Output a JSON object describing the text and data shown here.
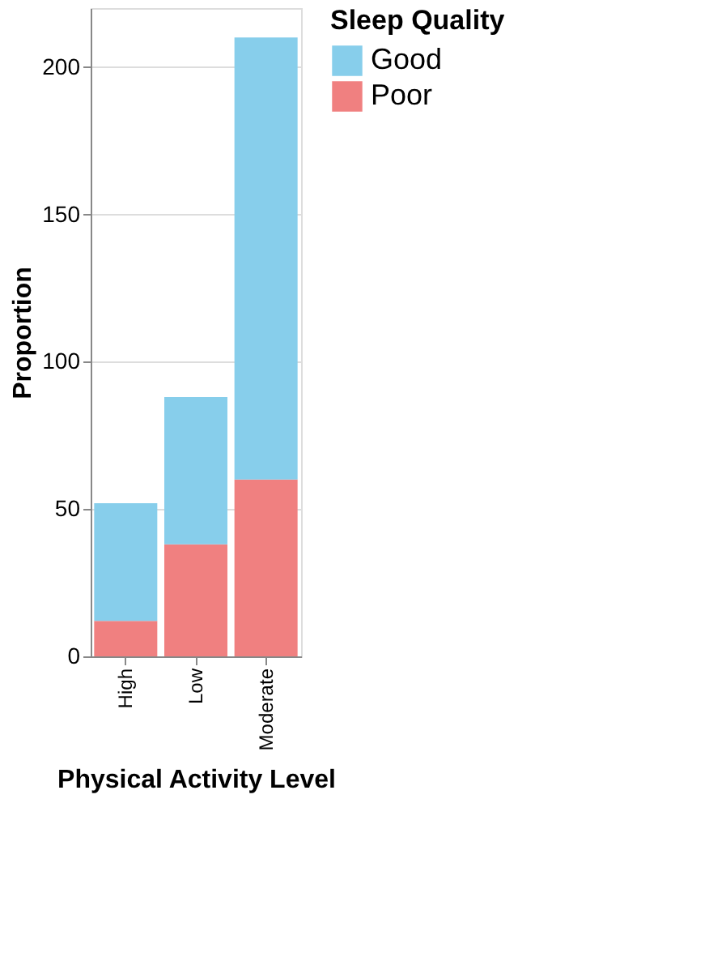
{
  "chart_data": {
    "type": "bar",
    "stacked": true,
    "xlabel": "Physical Activity Level",
    "ylabel": "Proportion",
    "legend_title": "Sleep Quality",
    "legend": "right",
    "grid": "y",
    "categories": [
      "High",
      "Low",
      "Moderate"
    ],
    "series": [
      {
        "name": "Poor",
        "color": "#f08080",
        "values": [
          12,
          38,
          60
        ]
      },
      {
        "name": "Good",
        "color": "#87ceeb",
        "values": [
          40,
          50,
          150
        ]
      }
    ],
    "ylim": [
      0,
      220
    ],
    "yticks": [
      0,
      50,
      100,
      150,
      200
    ]
  }
}
